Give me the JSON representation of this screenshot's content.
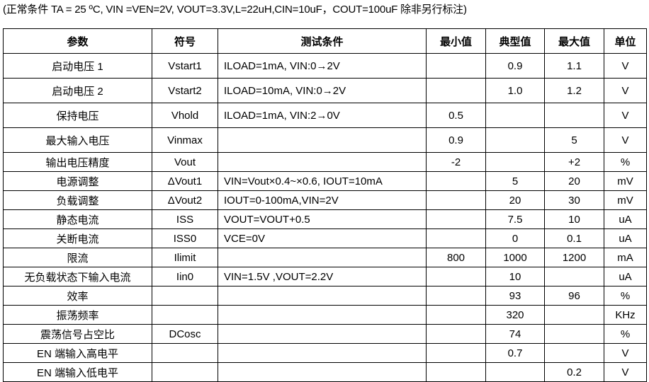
{
  "note": "(正常条件 TA = 25 ºC, VIN =VEN=2V, VOUT=3.3V,L=22uH,CIN=10uF，COUT=100uF 除非另行标注)",
  "headers": [
    "参数",
    "符号",
    "测试条件",
    "最小值",
    "典型值",
    "最大值",
    "单位"
  ],
  "rows": [
    [
      "启动电压 1",
      "Vstart1",
      "ILOAD=1mA, VIN:0→2V",
      "",
      "0.9",
      "1.1",
      "V"
    ],
    [
      "启动电压 2",
      "Vstart2",
      "ILOAD=10mA, VIN:0→2V",
      "",
      "1.0",
      "1.2",
      "V"
    ],
    [
      "保持电压",
      "Vhold",
      "ILOAD=1mA, VIN:2→0V",
      "0.5",
      "",
      "",
      "V"
    ],
    [
      "最大输入电压",
      "Vinmax",
      "",
      "0.9",
      "",
      "5",
      "V"
    ],
    [
      "输出电压精度",
      "Vout",
      "",
      "-2",
      "",
      "+2",
      "%"
    ],
    [
      "电源调整",
      "ΔVout1",
      "VIN=Vout×0.4~×0.6, IOUT=10mA",
      "",
      "5",
      "20",
      "mV"
    ],
    [
      "负载调整",
      "ΔVout2",
      "IOUT=0-100mA,VIN=2V",
      "",
      "20",
      "30",
      "mV"
    ],
    [
      "静态电流",
      "ISS",
      "VOUT=VOUT+0.5",
      "",
      "7.5",
      "10",
      "uA"
    ],
    [
      "关断电流",
      "ISS0",
      "VCE=0V",
      "",
      "0",
      "0.1",
      "uA"
    ],
    [
      "限流",
      "Ilimit",
      "",
      "800",
      "1000",
      "1200",
      "mA"
    ],
    [
      "无负载状态下输入电流",
      "Iin0",
      "VIN=1.5V ,VOUT=2.2V",
      "",
      "10",
      "",
      "uA"
    ],
    [
      "效率",
      "",
      "",
      "",
      "93",
      "96",
      "%"
    ],
    [
      "振荡频率",
      "",
      "",
      "",
      "320",
      "",
      "KHz"
    ],
    [
      "震荡信号占空比",
      "DCosc",
      "",
      "",
      "74",
      "",
      "%"
    ],
    [
      "EN 端输入高电平",
      "",
      "",
      "",
      "0.7",
      "",
      "V"
    ],
    [
      "EN 端输入低电平",
      "",
      "",
      "",
      "",
      "0.2",
      "V"
    ]
  ]
}
